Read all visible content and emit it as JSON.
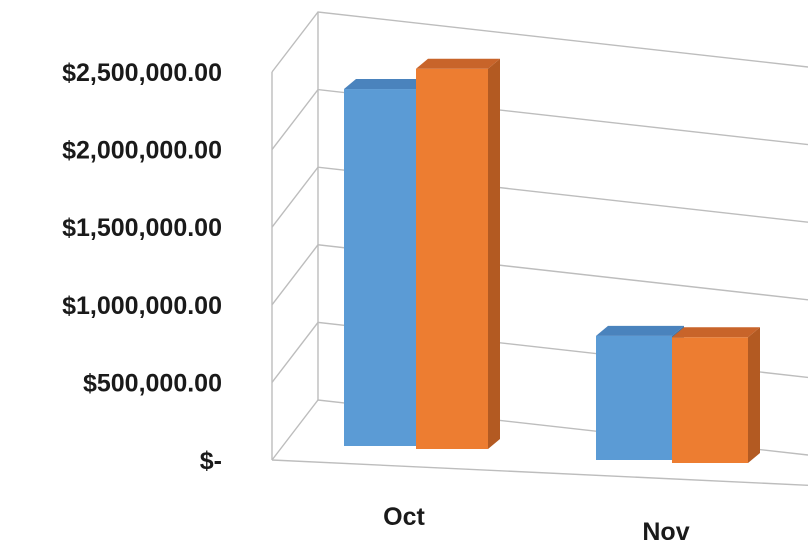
{
  "chart_data": {
    "type": "bar",
    "style": "3d-clustered-column",
    "categories": [
      "Oct",
      "Nov"
    ],
    "series": [
      {
        "values": [
          2300000,
          800000
        ],
        "color": "#5b9bd5",
        "top_color": "#4a83bd",
        "side_color": "#3f73a8"
      },
      {
        "values": [
          2450000,
          810000
        ],
        "color": "#ed7d31",
        "top_color": "#c8642a",
        "side_color": "#b35a22"
      }
    ],
    "y_ticks": [
      "$-",
      "$500,000.00",
      "$1,000,000.00",
      "$1,500,000.00",
      "$2,000,000.00",
      "$2,500,000.00"
    ],
    "ylim": [
      0,
      2500000
    ],
    "grid": true,
    "legend": "none",
    "title": "",
    "xlabel": "",
    "ylabel": ""
  }
}
